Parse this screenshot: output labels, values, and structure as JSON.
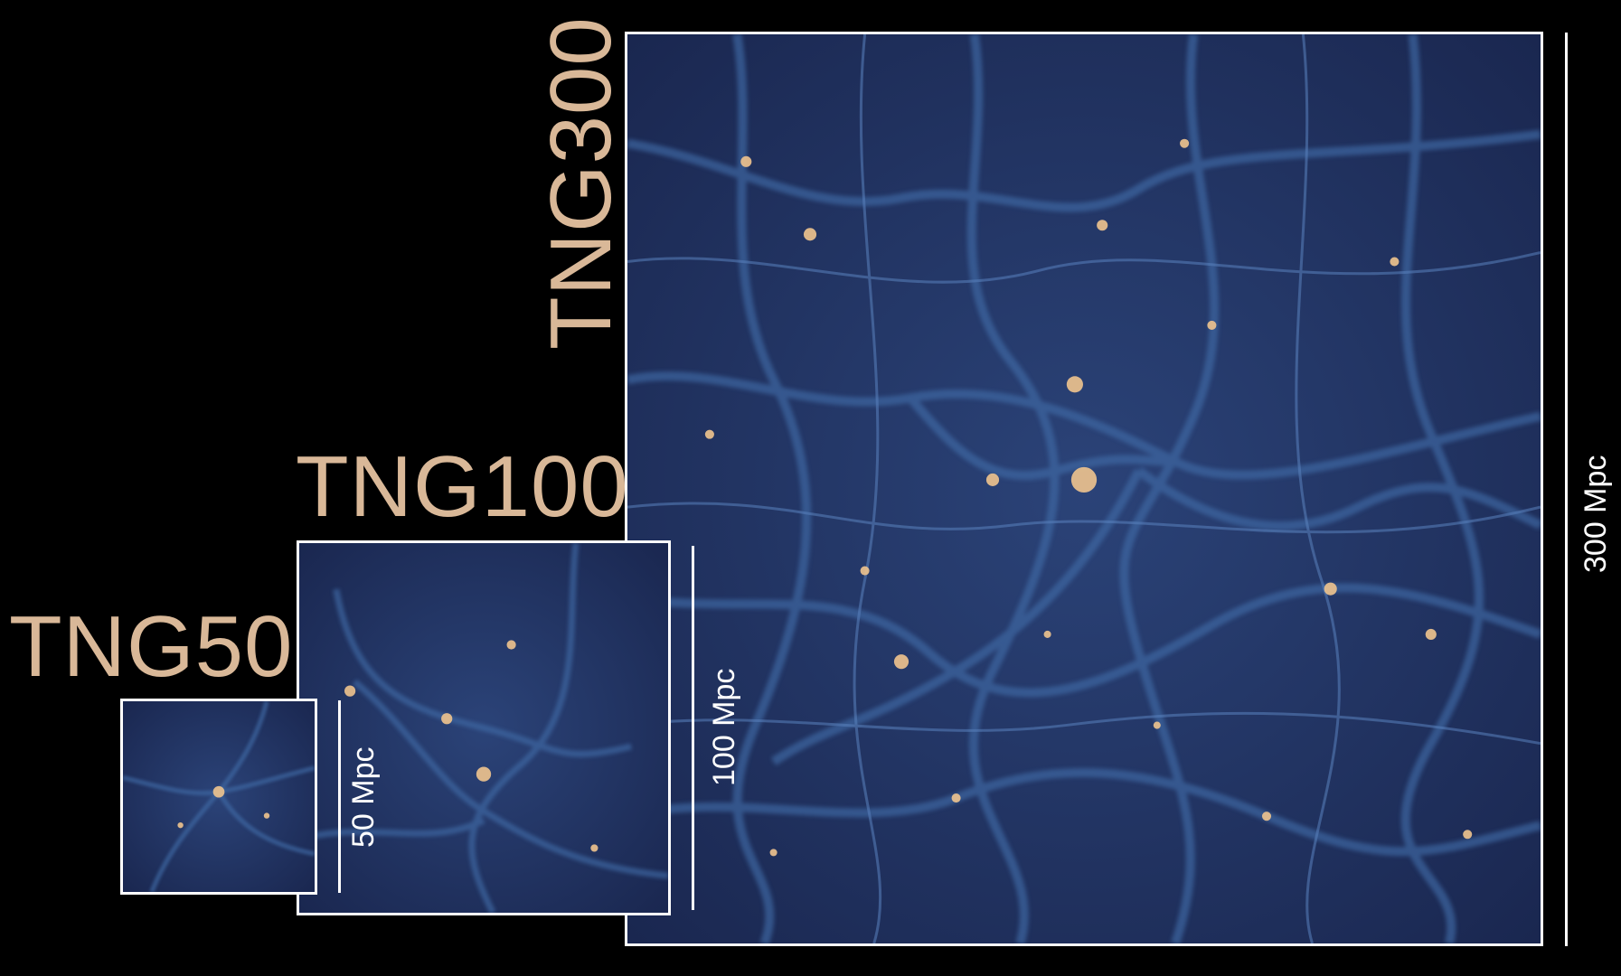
{
  "titles": {
    "tng50": "TNG50",
    "tng100": "TNG100",
    "tng300": "TNG300"
  },
  "scale_labels": {
    "tng50": "50 Mpc",
    "tng100": "100 Mpc",
    "tng300": "300 Mpc"
  },
  "colors": {
    "background": "#000000",
    "title_text": "#d9b898",
    "frame": "#ffffff",
    "void": "#1a2750",
    "filament": "#3f6aa6",
    "node_glow": "#f0c48e"
  }
}
